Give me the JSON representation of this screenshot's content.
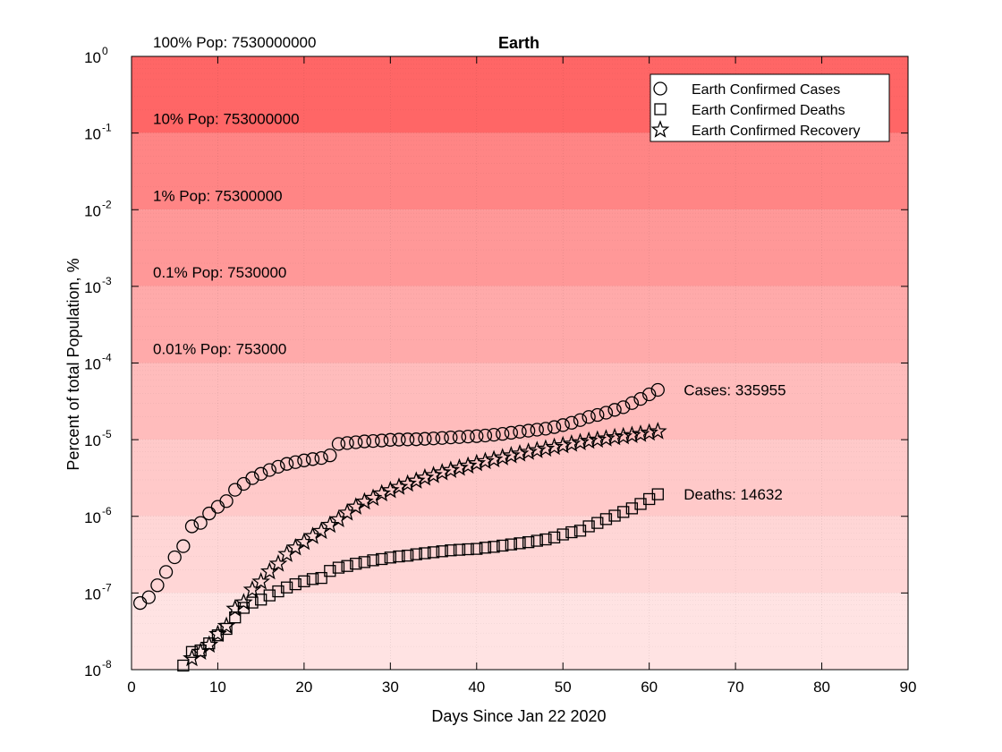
{
  "chart_data": {
    "type": "scatter",
    "title": "Earth",
    "xlabel": "Days Since Jan 22 2020",
    "ylabel": "Percent of total Population, %",
    "xlim": [
      0,
      90
    ],
    "ylim": [
      1e-08,
      1
    ],
    "yscale": "log",
    "grid": true,
    "legend_position": "top-right",
    "x_ticks": [
      0,
      10,
      20,
      30,
      40,
      50,
      60,
      70,
      80,
      90
    ],
    "y_ticks": [
      {
        "value": 1e-08,
        "base": "10",
        "exp": "-8"
      },
      {
        "value": 1e-07,
        "base": "10",
        "exp": "-7"
      },
      {
        "value": 1e-06,
        "base": "10",
        "exp": "-6"
      },
      {
        "value": 1e-05,
        "base": "10",
        "exp": "-5"
      },
      {
        "value": 0.0001,
        "base": "10",
        "exp": "-4"
      },
      {
        "value": 0.001,
        "base": "10",
        "exp": "-3"
      },
      {
        "value": 0.01,
        "base": "10",
        "exp": "-2"
      },
      {
        "value": 0.1,
        "base": "10",
        "exp": "-1"
      },
      {
        "value": 1,
        "base": "10",
        "exp": "0"
      }
    ],
    "bands": [
      {
        "from": 1e-08,
        "to": 1e-07,
        "color": "#ffe3e3"
      },
      {
        "from": 1e-07,
        "to": 1e-06,
        "color": "#ffd6d6"
      },
      {
        "from": 1e-06,
        "to": 1e-05,
        "color": "#ffc9c9"
      },
      {
        "from": 1e-05,
        "to": 0.0001,
        "color": "#ffbcbc"
      },
      {
        "from": 0.0001,
        "to": 0.001,
        "color": "#ffaaaa"
      },
      {
        "from": 0.001,
        "to": 0.01,
        "color": "#ff9898"
      },
      {
        "from": 0.01,
        "to": 0.1,
        "color": "#ff8585"
      },
      {
        "from": 0.1,
        "to": 1,
        "color": "#ff6666"
      }
    ],
    "population_labels": [
      {
        "y": 1,
        "text": "100% Pop: 7530000000"
      },
      {
        "y": 0.1,
        "text": "10% Pop: 753000000"
      },
      {
        "y": 0.01,
        "text": "1% Pop: 75300000"
      },
      {
        "y": 0.001,
        "text": "0.1% Pop: 7530000"
      },
      {
        "y": 0.0001,
        "text": "0.01% Pop: 753000"
      }
    ],
    "annotations": [
      {
        "x": 64,
        "y": 4.46e-05,
        "text": "Cases: 335955"
      },
      {
        "x": 64,
        "y": 1.94e-06,
        "text": "Deaths: 14632"
      }
    ],
    "series": [
      {
        "name": "Earth Confirmed Cases",
        "marker": "circle",
        "x": [
          1,
          2,
          3,
          4,
          5,
          6,
          7,
          8,
          9,
          10,
          11,
          12,
          13,
          14,
          15,
          16,
          17,
          18,
          19,
          20,
          21,
          22,
          23,
          24,
          25,
          26,
          27,
          28,
          29,
          30,
          31,
          32,
          33,
          34,
          35,
          36,
          37,
          38,
          39,
          40,
          41,
          42,
          43,
          44,
          45,
          46,
          47,
          48,
          49,
          50,
          51,
          52,
          53,
          54,
          55,
          56,
          57,
          58,
          59,
          60,
          61
        ],
        "y": [
          7.4e-08,
          8.8e-08,
          1.26e-07,
          1.88e-07,
          2.92e-07,
          4.08e-07,
          7.4e-07,
          8.2e-07,
          1.09e-06,
          1.33e-06,
          1.58e-06,
          2.22e-06,
          2.65e-06,
          3.15e-06,
          3.58e-06,
          4.02e-06,
          4.43e-06,
          4.83e-06,
          5.09e-06,
          5.36e-06,
          5.58e-06,
          5.76e-06,
          6.24e-06,
          8.8e-06,
          9.04e-06,
          9.26e-06,
          9.49e-06,
          9.6e-06,
          9.75e-06,
          9.95e-06,
          1.002e-05,
          1.008e-05,
          1.012e-05,
          1.026e-05,
          1.038e-05,
          1.052e-05,
          1.069e-05,
          1.081e-05,
          1.098e-05,
          1.112e-05,
          1.132e-05,
          1.16e-05,
          1.19e-05,
          1.23e-05,
          1.27e-05,
          1.31e-05,
          1.35e-05,
          1.39e-05,
          1.46e-05,
          1.55e-05,
          1.66e-05,
          1.8e-05,
          1.98e-05,
          2.1e-05,
          2.25e-05,
          2.45e-05,
          2.65e-05,
          3e-05,
          3.4e-05,
          3.9e-05,
          4.46e-05
        ]
      },
      {
        "name": "Earth Confirmed Deaths",
        "marker": "square",
        "x": [
          6,
          7,
          8,
          9,
          10,
          11,
          12,
          13,
          14,
          15,
          16,
          17,
          18,
          19,
          20,
          21,
          22,
          23,
          24,
          25,
          26,
          27,
          28,
          29,
          30,
          31,
          32,
          33,
          34,
          35,
          36,
          37,
          38,
          39,
          40,
          41,
          42,
          43,
          44,
          45,
          46,
          47,
          48,
          49,
          50,
          51,
          52,
          53,
          54,
          55,
          56,
          57,
          58,
          59,
          60,
          61
        ],
        "y": [
          1.13e-08,
          1.7e-08,
          1.78e-08,
          2.2e-08,
          2.8e-08,
          3.4e-08,
          4.8e-08,
          6.4e-08,
          7.5e-08,
          8.2e-08,
          9.3e-08,
          1.05e-07,
          1.18e-07,
          1.3e-07,
          1.42e-07,
          1.52e-07,
          1.57e-07,
          1.94e-07,
          2.14e-07,
          2.25e-07,
          2.41e-07,
          2.53e-07,
          2.67e-07,
          2.77e-07,
          2.9e-07,
          3e-07,
          3.07e-07,
          3.2e-07,
          3.3e-07,
          3.4e-07,
          3.5e-07,
          3.6e-07,
          3.66e-07,
          3.72e-07,
          3.76e-07,
          3.9e-07,
          4e-07,
          4.15e-07,
          4.3e-07,
          4.45e-07,
          4.6e-07,
          4.8e-07,
          5e-07,
          5.3e-07,
          5.8e-07,
          6.2e-07,
          6.5e-07,
          7.4e-07,
          8.2e-07,
          9.2e-07,
          1.02e-06,
          1.14e-06,
          1.27e-06,
          1.45e-06,
          1.68e-06,
          1.94e-06
        ]
      },
      {
        "name": "Earth Confirmed Recovery",
        "marker": "star",
        "x": [
          7,
          8,
          9,
          10,
          11,
          12,
          13,
          14,
          15,
          16,
          17,
          18,
          19,
          20,
          21,
          22,
          23,
          24,
          25,
          26,
          27,
          28,
          29,
          30,
          31,
          32,
          33,
          34,
          35,
          36,
          37,
          38,
          39,
          40,
          41,
          42,
          43,
          44,
          45,
          46,
          47,
          48,
          49,
          50,
          51,
          52,
          53,
          54,
          55,
          56,
          57,
          58,
          59,
          60,
          61
        ],
        "y": [
          1.4e-08,
          1.7e-08,
          2.1e-08,
          2.9e-08,
          3.7e-08,
          6.2e-08,
          7.5e-08,
          1.1e-07,
          1.4e-07,
          1.9e-07,
          2.4e-07,
          3.2e-07,
          3.9e-07,
          4.6e-07,
          5.5e-07,
          6.4e-07,
          7.7e-07,
          9.1e-07,
          1.11e-06,
          1.33e-06,
          1.55e-06,
          1.73e-06,
          1.98e-06,
          2.18e-06,
          2.41e-06,
          2.65e-06,
          2.9e-06,
          3.18e-06,
          3.43e-06,
          3.72e-06,
          4e-06,
          4.27e-06,
          4.55e-06,
          4.9e-06,
          5.22e-06,
          5.5e-06,
          5.85e-06,
          6.2e-06,
          6.55e-06,
          6.9e-06,
          7.25e-06,
          7.6e-06,
          8e-06,
          8.4e-06,
          8.8e-06,
          9.2e-06,
          9.6e-06,
          9.95e-06,
          1.03e-05,
          1.07e-05,
          1.1e-05,
          1.14e-05,
          1.18e-05,
          1.23e-05,
          1.28e-05
        ]
      }
    ]
  }
}
